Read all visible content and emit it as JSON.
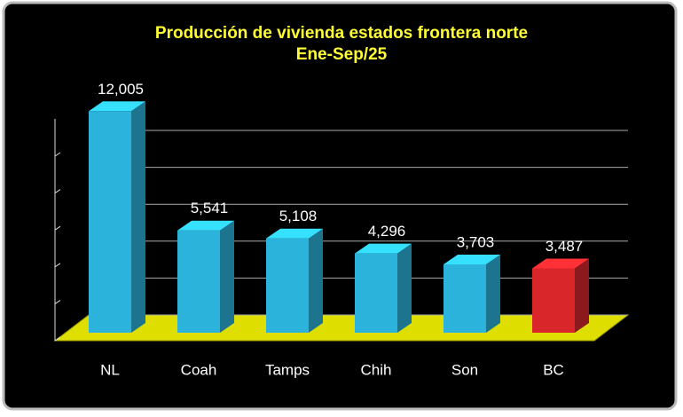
{
  "chart_data": {
    "type": "bar3d",
    "title": "Producción de vivienda estados frontera norte",
    "subtitle": "Ene-Sep/25",
    "categories": [
      "NL",
      "Coah",
      "Tamps",
      "Chih",
      "Son",
      "BC"
    ],
    "values": [
      12005,
      5541,
      5108,
      4296,
      3703,
      3487
    ],
    "value_labels": [
      "12,005",
      "5,541",
      "5,108",
      "4,296",
      "3,703",
      "3,487"
    ],
    "colors": [
      "#2bb3dc",
      "#2bb3dc",
      "#2bb3dc",
      "#2bb3dc",
      "#2bb3dc",
      "#d8262b"
    ],
    "ylim": [
      0,
      12500
    ],
    "yticks": [
      0,
      2000,
      4000,
      6000,
      8000,
      10000
    ],
    "grid": true
  }
}
